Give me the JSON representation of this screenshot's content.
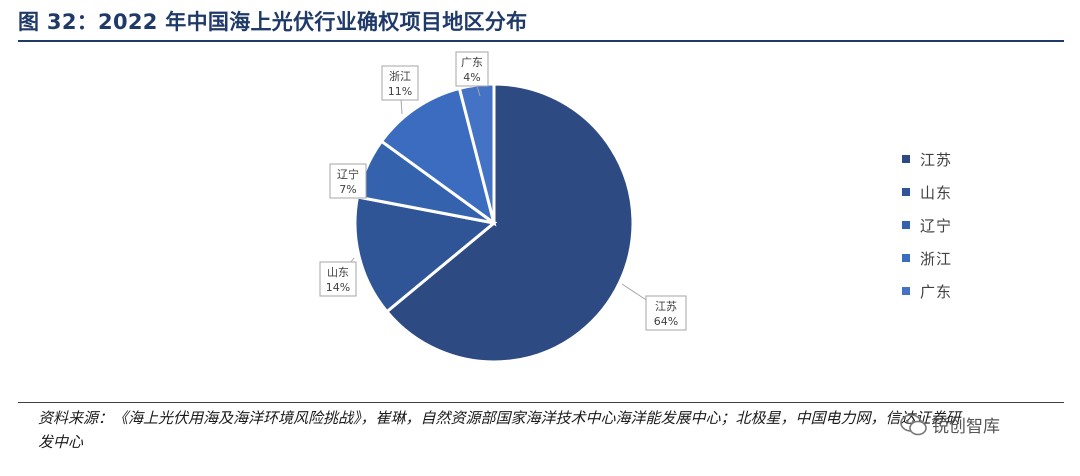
{
  "title": "图 32：2022 年中国海上光伏行业确权项目地区分布",
  "chart_data": {
    "type": "pie",
    "categories": [
      "江苏",
      "山东",
      "辽宁",
      "浙江",
      "广东"
    ],
    "values": [
      64,
      14,
      7,
      11,
      4
    ],
    "unit": "%",
    "colors": [
      "#2e4a82",
      "#2f5597",
      "#3562ad",
      "#3b6cc0",
      "#4472c4"
    ],
    "data_labels": [
      {
        "name": "江苏",
        "value": "64%"
      },
      {
        "name": "山东",
        "value": "14%"
      },
      {
        "name": "辽宁",
        "value": "7%"
      },
      {
        "name": "浙江",
        "value": "11%"
      },
      {
        "name": "广东",
        "value": "4%"
      }
    ],
    "legend": [
      "江苏",
      "山东",
      "辽宁",
      "浙江",
      "广东"
    ],
    "legend_position": "right"
  },
  "source": "资料来源：《海上光伏用海及海洋环境风险挑战》，崔琳，自然资源部国家海洋技术中心海洋能发展中心；北极星，中国电力网，信达证券研发中心",
  "watermark": "锐创智库"
}
